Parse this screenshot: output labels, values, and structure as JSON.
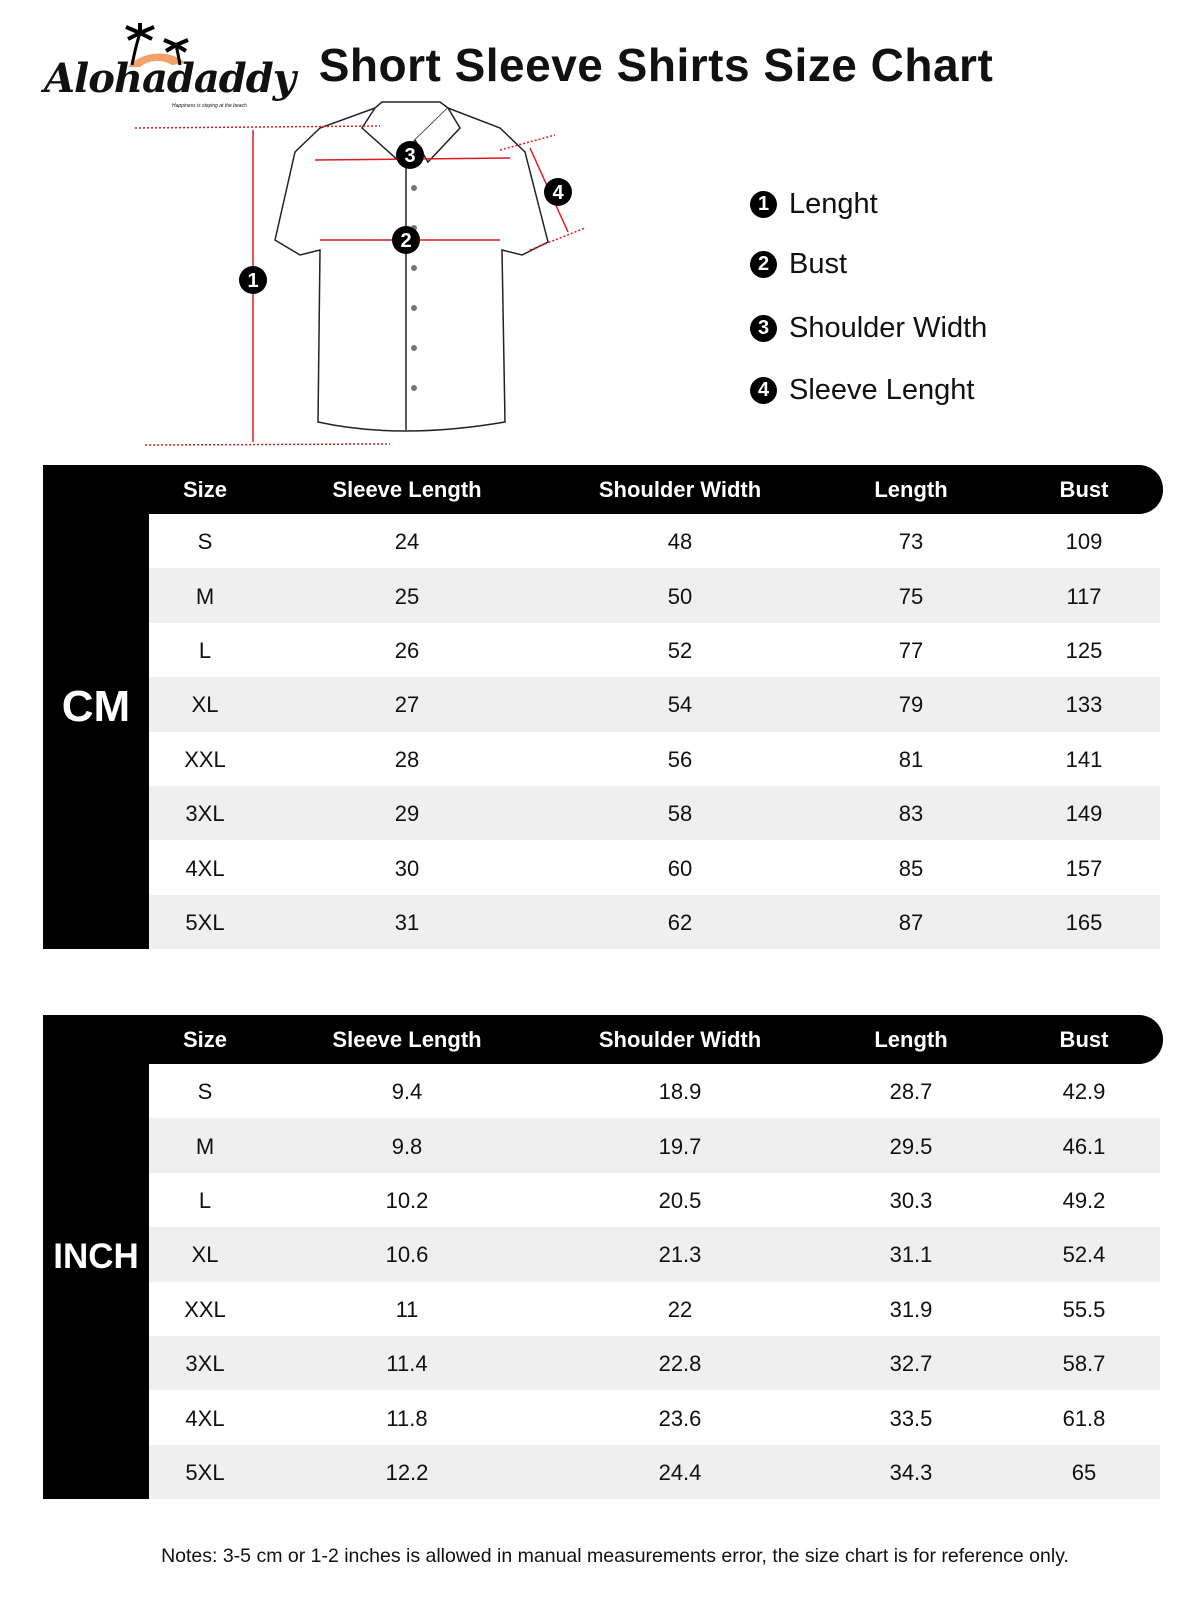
{
  "brand": {
    "name": "Alohadaddy",
    "tagline": "Happiness is staying at the beach"
  },
  "title": "Short Sleeve Shirts Size Chart",
  "legend": [
    {
      "num": "1",
      "label": "Lenght"
    },
    {
      "num": "2",
      "label": "Bust"
    },
    {
      "num": "3",
      "label": "Shoulder Width"
    },
    {
      "num": "4",
      "label": "Sleeve Lenght"
    }
  ],
  "diagram_markers": [
    "1",
    "2",
    "3",
    "4"
  ],
  "columns": [
    "Size",
    "Sleeve Length",
    "Shoulder Width",
    "Length",
    "Bust"
  ],
  "tables": [
    {
      "unit": "CM",
      "rows": [
        [
          "S",
          "24",
          "48",
          "73",
          "109"
        ],
        [
          "M",
          "25",
          "50",
          "75",
          "117"
        ],
        [
          "L",
          "26",
          "52",
          "77",
          "125"
        ],
        [
          "XL",
          "27",
          "54",
          "79",
          "133"
        ],
        [
          "XXL",
          "28",
          "56",
          "81",
          "141"
        ],
        [
          "3XL",
          "29",
          "58",
          "83",
          "149"
        ],
        [
          "4XL",
          "30",
          "60",
          "85",
          "157"
        ],
        [
          "5XL",
          "31",
          "62",
          "87",
          "165"
        ]
      ]
    },
    {
      "unit": "INCH",
      "rows": [
        [
          "S",
          "9.4",
          "18.9",
          "28.7",
          "42.9"
        ],
        [
          "M",
          "9.8",
          "19.7",
          "29.5",
          "46.1"
        ],
        [
          "L",
          "10.2",
          "20.5",
          "30.3",
          "49.2"
        ],
        [
          "XL",
          "10.6",
          "21.3",
          "31.1",
          "52.4"
        ],
        [
          "XXL",
          "11",
          "22",
          "31.9",
          "55.5"
        ],
        [
          "3XL",
          "11.4",
          "22.8",
          "32.7",
          "58.7"
        ],
        [
          "4XL",
          "11.8",
          "23.6",
          "33.5",
          "61.8"
        ],
        [
          "5XL",
          "12.2",
          "24.4",
          "34.3",
          "65"
        ]
      ]
    }
  ],
  "notes": "Notes: 3-5 cm or 1-2 inches is allowed in manual measurements error, the size chart is for reference only.",
  "colors": {
    "measure_line": "#e0191f",
    "logo_sun": "#f4a06a",
    "row_alt": "#efefef"
  }
}
